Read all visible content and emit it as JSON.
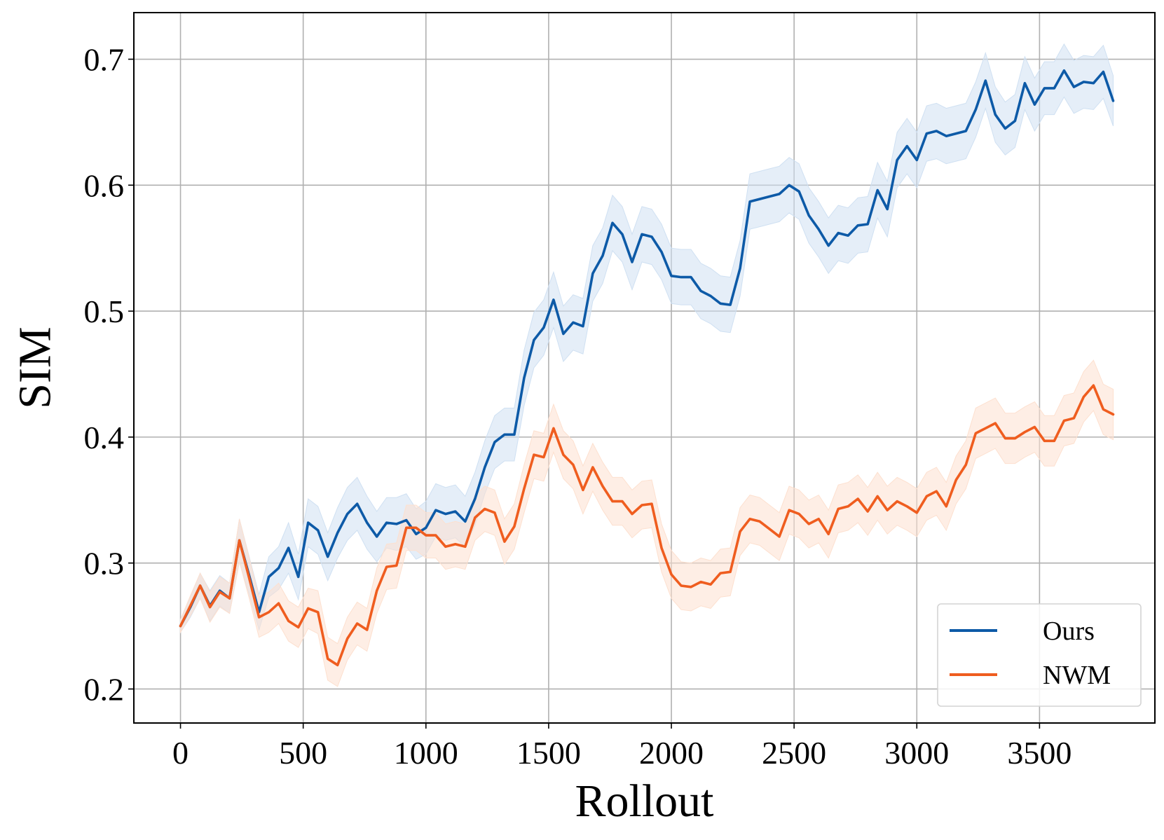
{
  "chart_data": {
    "type": "line",
    "title": "",
    "xlabel": "Rollout",
    "ylabel": "SIM",
    "xlim": [
      -190,
      3970
    ],
    "ylim": [
      0.173,
      0.737
    ],
    "xticks": [
      0,
      500,
      1000,
      1500,
      2000,
      2500,
      3000,
      3500
    ],
    "yticks": [
      0.2,
      0.3,
      0.4,
      0.5,
      0.6,
      0.7
    ],
    "xtick_labels": [
      "0",
      "500",
      "1000",
      "1500",
      "2000",
      "2500",
      "3000",
      "3500"
    ],
    "ytick_labels": [
      "0.2",
      "0.3",
      "0.4",
      "0.5",
      "0.6",
      "0.7"
    ],
    "grid": true,
    "legend_position": "bottom-right",
    "x": [
      0,
      40,
      80,
      120,
      160,
      200,
      240,
      280,
      320,
      360,
      400,
      440,
      480,
      520,
      560,
      600,
      640,
      680,
      720,
      760,
      800,
      840,
      880,
      920,
      960,
      1000,
      1040,
      1080,
      1120,
      1160,
      1200,
      1240,
      1280,
      1320,
      1360,
      1400,
      1440,
      1480,
      1520,
      1560,
      1600,
      1640,
      1680,
      1720,
      1760,
      1800,
      1840,
      1880,
      1920,
      1960,
      2000,
      2040,
      2080,
      2120,
      2160,
      2200,
      2240,
      2280,
      2320,
      2360,
      2400,
      2440,
      2480,
      2520,
      2560,
      2600,
      2640,
      2680,
      2720,
      2760,
      2800,
      2840,
      2880,
      2920,
      2960,
      3000,
      3040,
      3080,
      3120,
      3160,
      3200,
      3240,
      3280,
      3320,
      3360,
      3400,
      3440,
      3480,
      3520,
      3560,
      3600,
      3640,
      3680,
      3720,
      3760,
      3800
    ],
    "series": [
      {
        "name": "Ours",
        "color": "#0d5aa7",
        "band_color": "#cfe0f2",
        "values": [
          0.25,
          0.265,
          0.282,
          0.266,
          0.278,
          0.272,
          0.318,
          0.29,
          0.261,
          0.289,
          0.296,
          0.312,
          0.289,
          0.332,
          0.326,
          0.305,
          0.324,
          0.339,
          0.347,
          0.332,
          0.321,
          0.332,
          0.331,
          0.334,
          0.323,
          0.328,
          0.342,
          0.339,
          0.341,
          0.333,
          0.351,
          0.376,
          0.396,
          0.402,
          0.402,
          0.447,
          0.477,
          0.487,
          0.509,
          0.482,
          0.491,
          0.488,
          0.53,
          0.544,
          0.57,
          0.561,
          0.539,
          0.561,
          0.559,
          0.547,
          0.528,
          0.527,
          0.527,
          0.516,
          0.512,
          0.506,
          0.505,
          0.534,
          0.587,
          0.589,
          0.591,
          0.593,
          0.6,
          0.595,
          0.576,
          0.565,
          0.552,
          0.562,
          0.56,
          0.568,
          0.569,
          0.596,
          0.581,
          0.62,
          0.631,
          0.62,
          0.641,
          0.643,
          0.639,
          0.641,
          0.643,
          0.66,
          0.683,
          0.656,
          0.645,
          0.651,
          0.681,
          0.664,
          0.677,
          0.677,
          0.691,
          0.678,
          0.682,
          0.681,
          0.69,
          0.667
        ],
        "band": [
          0.005,
          0.008,
          0.01,
          0.012,
          0.012,
          0.012,
          0.017,
          0.015,
          0.014,
          0.016,
          0.017,
          0.02,
          0.018,
          0.019,
          0.019,
          0.019,
          0.02,
          0.021,
          0.021,
          0.021,
          0.02,
          0.02,
          0.021,
          0.021,
          0.02,
          0.021,
          0.021,
          0.021,
          0.021,
          0.02,
          0.021,
          0.021,
          0.021,
          0.021,
          0.021,
          0.022,
          0.022,
          0.022,
          0.022,
          0.022,
          0.022,
          0.022,
          0.022,
          0.022,
          0.022,
          0.022,
          0.022,
          0.022,
          0.022,
          0.022,
          0.022,
          0.022,
          0.022,
          0.022,
          0.022,
          0.022,
          0.022,
          0.022,
          0.022,
          0.022,
          0.022,
          0.022,
          0.022,
          0.022,
          0.022,
          0.022,
          0.022,
          0.022,
          0.022,
          0.022,
          0.022,
          0.022,
          0.022,
          0.022,
          0.022,
          0.022,
          0.022,
          0.022,
          0.022,
          0.022,
          0.022,
          0.022,
          0.022,
          0.022,
          0.021,
          0.021,
          0.021,
          0.021,
          0.021,
          0.021,
          0.021,
          0.021,
          0.021,
          0.021,
          0.021,
          0.02
        ]
      },
      {
        "name": "NWM",
        "color": "#ef5d1f",
        "band_color": "#fde0cf",
        "values": [
          0.25,
          0.266,
          0.282,
          0.265,
          0.277,
          0.272,
          0.318,
          0.288,
          0.257,
          0.261,
          0.268,
          0.254,
          0.249,
          0.264,
          0.261,
          0.224,
          0.219,
          0.24,
          0.252,
          0.247,
          0.278,
          0.297,
          0.298,
          0.328,
          0.328,
          0.322,
          0.322,
          0.313,
          0.315,
          0.313,
          0.336,
          0.343,
          0.34,
          0.317,
          0.329,
          0.359,
          0.386,
          0.384,
          0.407,
          0.386,
          0.378,
          0.358,
          0.376,
          0.361,
          0.349,
          0.349,
          0.339,
          0.346,
          0.347,
          0.312,
          0.291,
          0.282,
          0.281,
          0.285,
          0.283,
          0.292,
          0.293,
          0.325,
          0.335,
          0.333,
          0.327,
          0.321,
          0.342,
          0.339,
          0.331,
          0.335,
          0.323,
          0.343,
          0.345,
          0.351,
          0.341,
          0.353,
          0.342,
          0.349,
          0.345,
          0.34,
          0.353,
          0.357,
          0.345,
          0.366,
          0.378,
          0.403,
          0.407,
          0.411,
          0.399,
          0.399,
          0.404,
          0.408,
          0.397,
          0.397,
          0.413,
          0.415,
          0.432,
          0.441,
          0.422,
          0.418
        ],
        "band": [
          0.005,
          0.008,
          0.01,
          0.012,
          0.012,
          0.012,
          0.017,
          0.016,
          0.016,
          0.016,
          0.016,
          0.016,
          0.016,
          0.016,
          0.017,
          0.017,
          0.017,
          0.017,
          0.017,
          0.017,
          0.018,
          0.018,
          0.018,
          0.018,
          0.018,
          0.018,
          0.018,
          0.018,
          0.018,
          0.018,
          0.018,
          0.018,
          0.018,
          0.018,
          0.018,
          0.019,
          0.019,
          0.019,
          0.019,
          0.019,
          0.019,
          0.019,
          0.019,
          0.019,
          0.019,
          0.019,
          0.019,
          0.019,
          0.019,
          0.019,
          0.019,
          0.019,
          0.019,
          0.019,
          0.019,
          0.019,
          0.019,
          0.019,
          0.019,
          0.019,
          0.019,
          0.019,
          0.019,
          0.019,
          0.019,
          0.019,
          0.019,
          0.019,
          0.019,
          0.019,
          0.019,
          0.019,
          0.019,
          0.019,
          0.019,
          0.019,
          0.019,
          0.019,
          0.019,
          0.019,
          0.019,
          0.02,
          0.02,
          0.02,
          0.02,
          0.02,
          0.02,
          0.02,
          0.02,
          0.02,
          0.02,
          0.02,
          0.02,
          0.02,
          0.02,
          0.02
        ]
      }
    ]
  }
}
